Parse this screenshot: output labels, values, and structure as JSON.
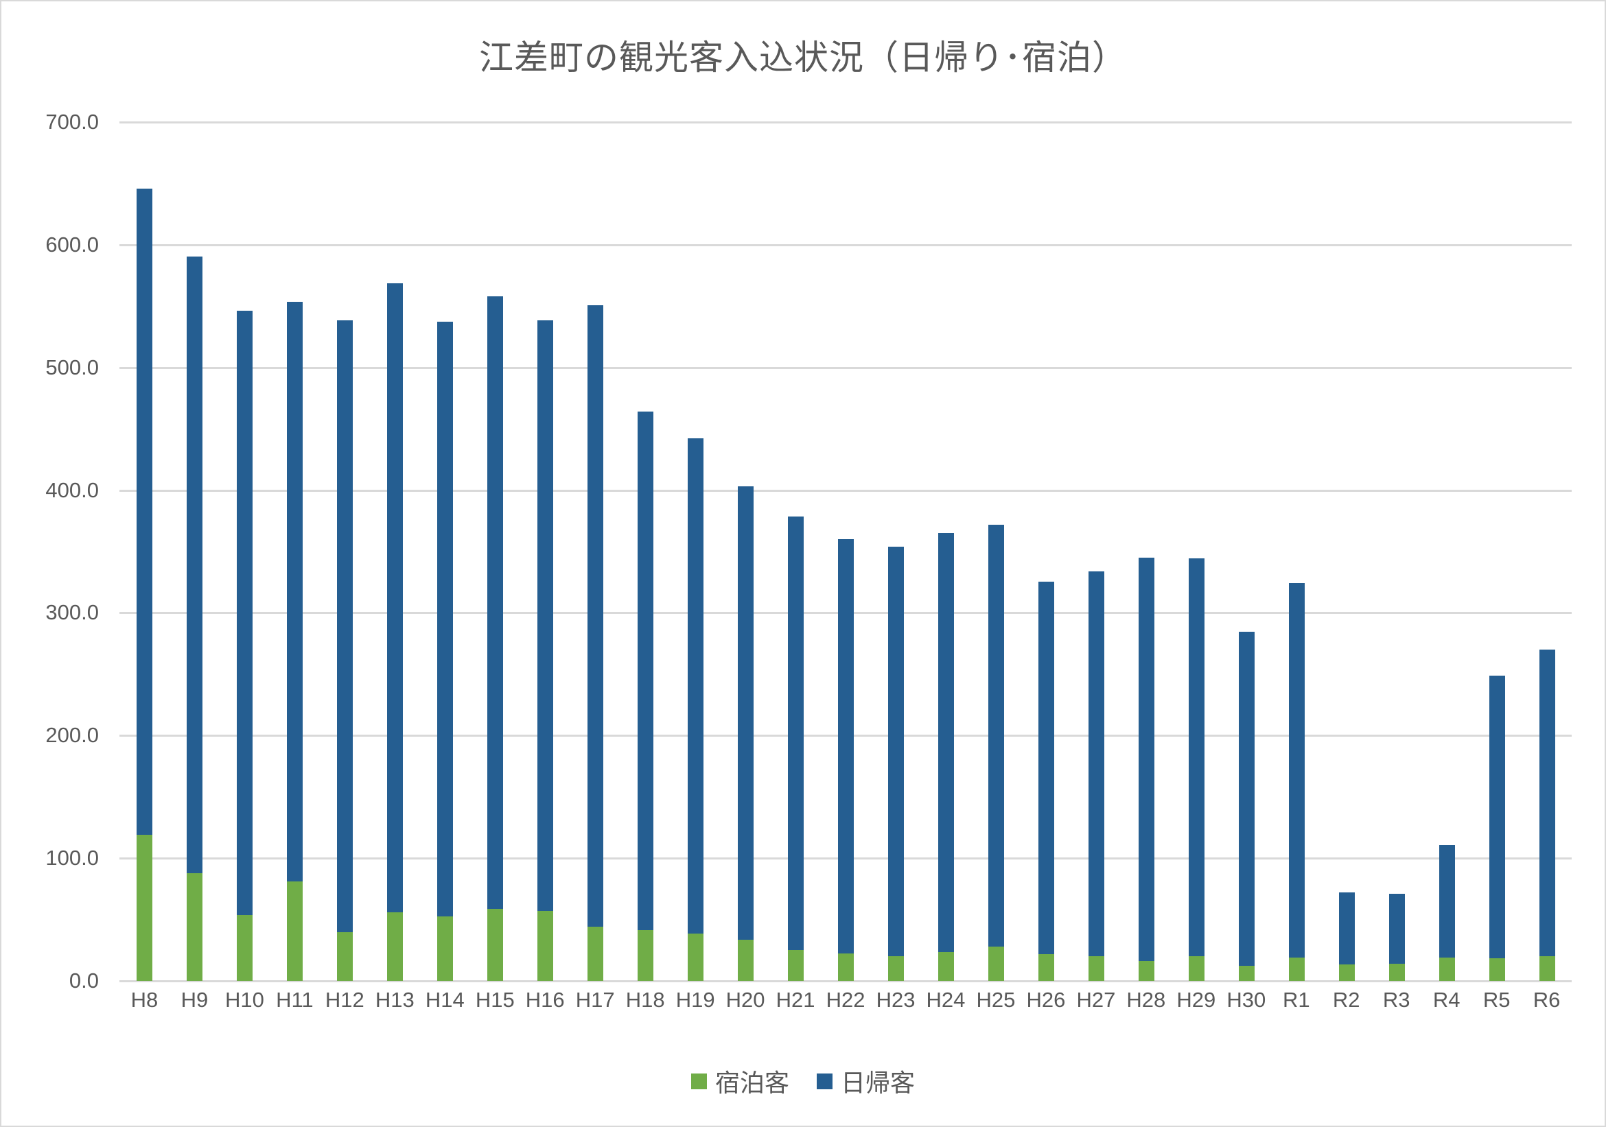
{
  "chart_data": {
    "type": "bar",
    "stacked": true,
    "title": "江差町の観光客入込状況（日帰り･宿泊）",
    "xlabel": "",
    "ylabel": "",
    "ylim": [
      0,
      700
    ],
    "yticks": [
      "0.0",
      "100.0",
      "200.0",
      "300.0",
      "400.0",
      "500.0",
      "600.0",
      "700.0"
    ],
    "grid": true,
    "legend_position": "bottom",
    "categories": [
      "H8",
      "H9",
      "H10",
      "H11",
      "H12",
      "H13",
      "H14",
      "H15",
      "H16",
      "H17",
      "H18",
      "H19",
      "H20",
      "H21",
      "H22",
      "H23",
      "H24",
      "H25",
      "H26",
      "H27",
      "H28",
      "H29",
      "H30",
      "R1",
      "R2",
      "R3",
      "R4",
      "R5",
      "R6"
    ],
    "series": [
      {
        "name": "宿泊客",
        "color": "#70AD47",
        "values": [
          119.2,
          87.6,
          53.9,
          81.0,
          39.9,
          56.0,
          52.8,
          58.5,
          57.3,
          44.4,
          41.5,
          38.7,
          33.8,
          25.4,
          22.5,
          20.3,
          23.7,
          28.2,
          22.0,
          20.3,
          16.3,
          20.3,
          12.4,
          19.2,
          13.5,
          14.1,
          19.2,
          18.6,
          20.3
        ]
      },
      {
        "name": "日帰客",
        "color": "#255E91",
        "values": [
          526.4,
          503.1,
          492.2,
          472.4,
          498.3,
          512.9,
          484.3,
          499.3,
          481.3,
          506.1,
          422.7,
          403.6,
          369.3,
          353.1,
          337.7,
          333.6,
          341.5,
          343.6,
          303.3,
          313.6,
          328.6,
          324.0,
          272.0,
          304.9,
          58.5,
          56.8,
          91.7,
          230.0,
          249.6
        ]
      }
    ],
    "totals": [
      645.6,
      590.7,
      546.1,
      553.4,
      538.2,
      568.9,
      537.1,
      557.8,
      538.6,
      550.5,
      464.2,
      442.3,
      403.1,
      378.5,
      360.2,
      353.9,
      365.2,
      371.8,
      325.3,
      333.9,
      344.9,
      344.3,
      284.4,
      324.1,
      72.0,
      70.9,
      110.9,
      248.6,
      269.9
    ]
  },
  "legend": {
    "items": [
      {
        "label": "宿泊客",
        "color": "#70AD47"
      },
      {
        "label": "日帰客",
        "color": "#255E91"
      }
    ]
  }
}
